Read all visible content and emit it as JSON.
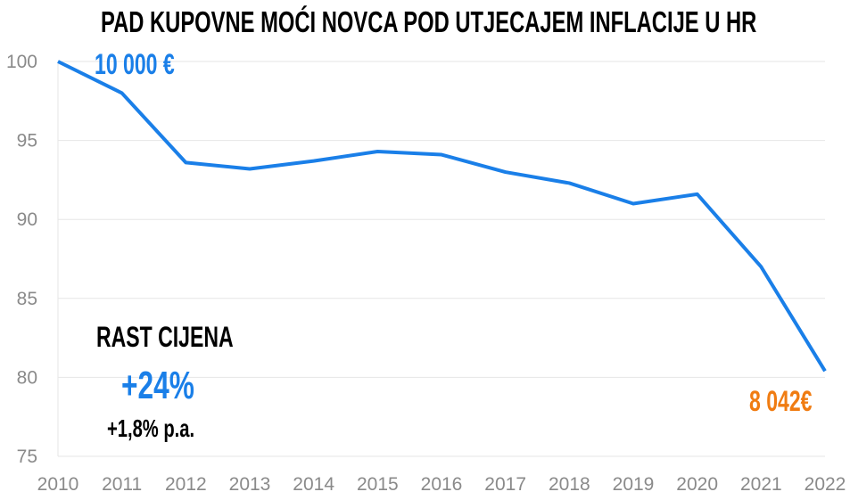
{
  "chart_data": {
    "type": "line",
    "title": "PAD KUPOVNE MOĆI NOVCA POD UTJECAJEM INFLACIJE U HR",
    "xlabel": "",
    "ylabel": "",
    "categories": [
      "2010",
      "2011",
      "2012",
      "2013",
      "2014",
      "2015",
      "2016",
      "2017",
      "2018",
      "2019",
      "2020",
      "2021",
      "2022"
    ],
    "values": [
      100,
      98.0,
      93.6,
      93.2,
      93.7,
      94.3,
      94.1,
      93.0,
      92.3,
      91.0,
      91.6,
      87.0,
      80.4
    ],
    "ylim": [
      75,
      100
    ],
    "yticks": [
      "75",
      "80",
      "85",
      "90",
      "95",
      "100"
    ],
    "grid": true,
    "line_color": "#1a7fe8",
    "annotations": {
      "start_value": "10 000 €",
      "end_value": "8 042€",
      "price_growth_label": "RAST CIJENA",
      "price_growth_total": "+24%",
      "price_growth_annual": "+1,8% p.a."
    },
    "colors": {
      "start": "#1a7fe8",
      "end": "#f07c12",
      "accent": "#1a7fe8"
    }
  }
}
